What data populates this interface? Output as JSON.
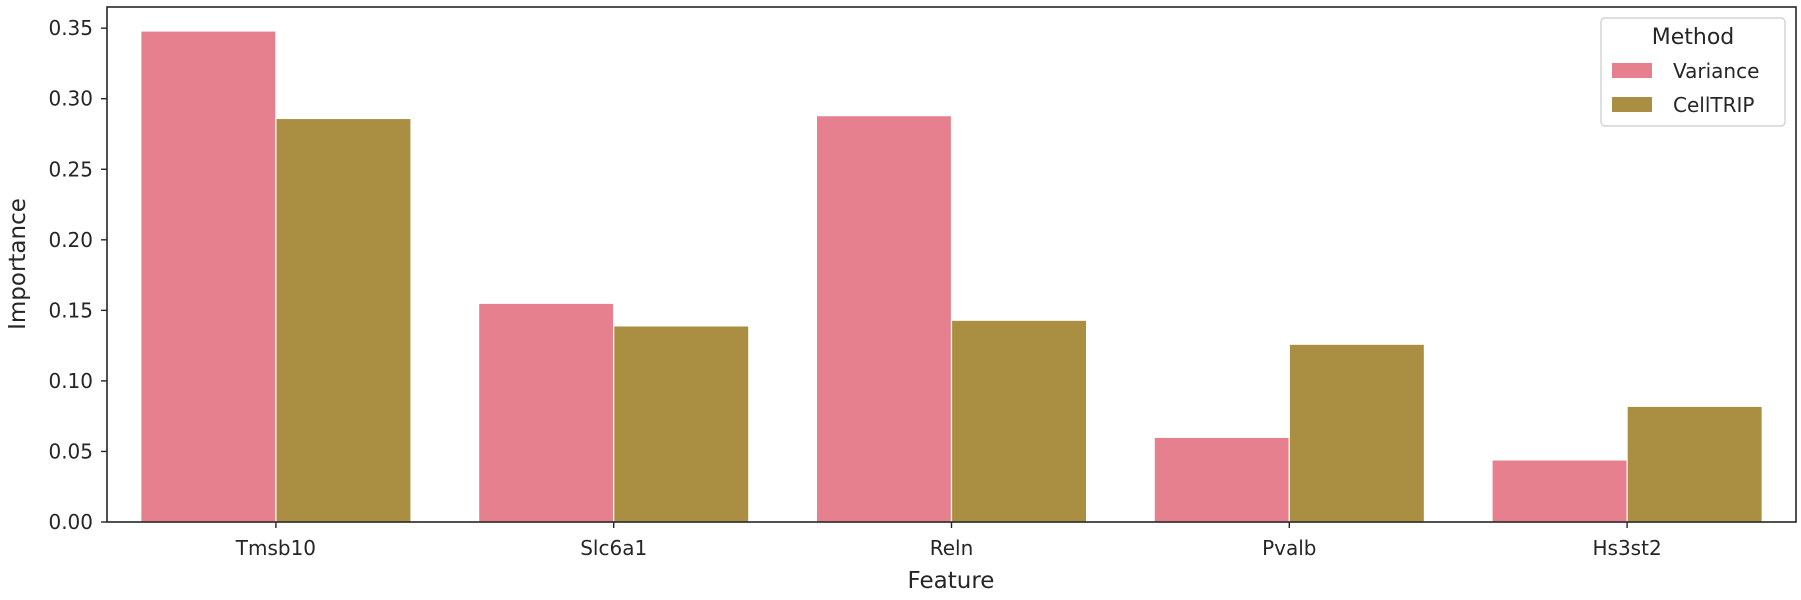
{
  "chart_data": {
    "type": "bar",
    "title": "",
    "xlabel": "Feature",
    "ylabel": "Importance",
    "categories": [
      "Tmsb10",
      "Slc6a1",
      "Reln",
      "Pvalb",
      "Hs3st2"
    ],
    "series": [
      {
        "name": "Variance",
        "color": "#e6808f",
        "values": [
          0.348,
          0.155,
          0.288,
          0.06,
          0.044
        ]
      },
      {
        "name": "CellTRIP",
        "color": "#aa8e42",
        "values": [
          0.286,
          0.139,
          0.143,
          0.126,
          0.082
        ]
      }
    ],
    "ylim": [
      0,
      0.365
    ],
    "yticks": [
      "0.00",
      "0.05",
      "0.10",
      "0.15",
      "0.20",
      "0.25",
      "0.30",
      "0.35"
    ],
    "grid": false,
    "legend": {
      "title": "Method",
      "placement": "top-right"
    }
  }
}
